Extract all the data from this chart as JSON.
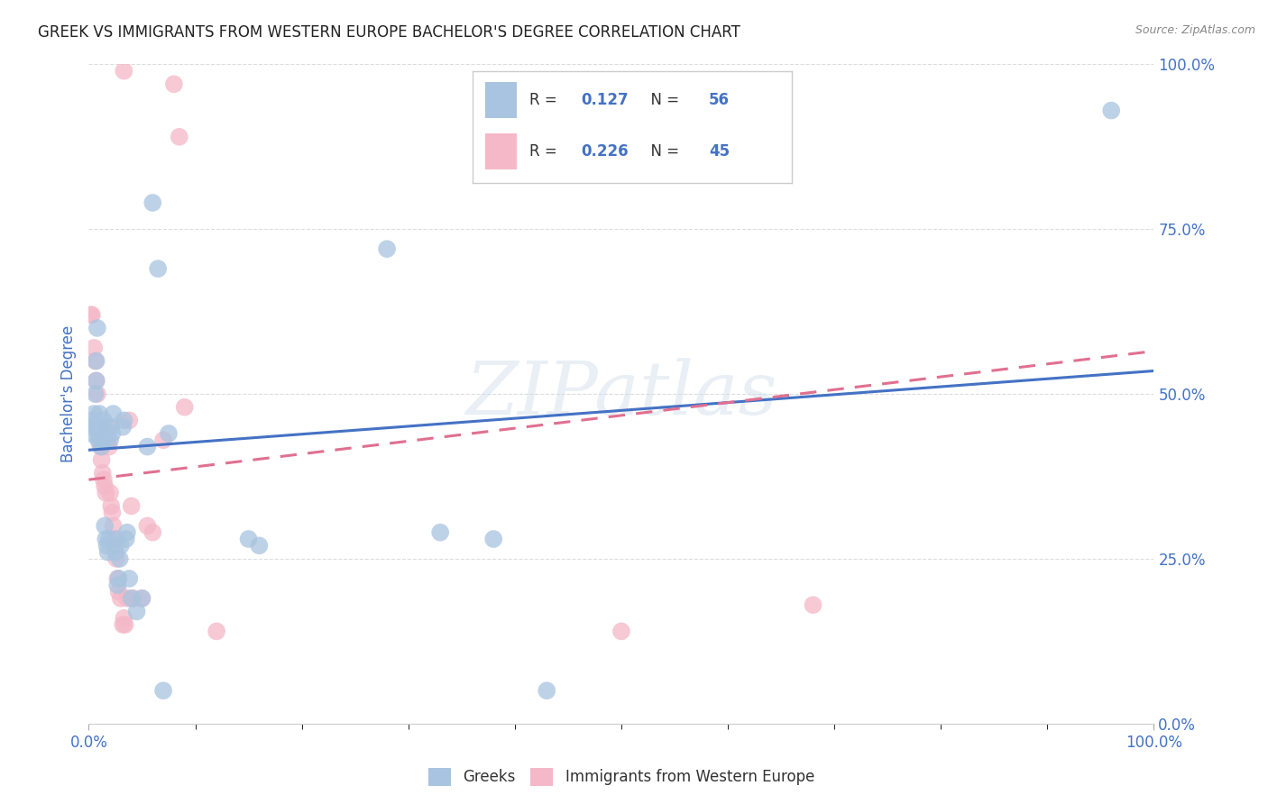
{
  "title": "GREEK VS IMMIGRANTS FROM WESTERN EUROPE BACHELOR'S DEGREE CORRELATION CHART",
  "source": "Source: ZipAtlas.com",
  "ylabel": "Bachelor's Degree",
  "watermark": "ZIPatlas",
  "xlim": [
    0,
    1
  ],
  "ylim": [
    0,
    1
  ],
  "ytick_positions": [
    0.0,
    0.25,
    0.5,
    0.75,
    1.0
  ],
  "ytick_labels": [
    "0.0%",
    "25.0%",
    "50.0%",
    "75.0%",
    "100.0%"
  ],
  "greek_R": "0.127",
  "greek_N": "56",
  "immigrant_R": "0.226",
  "immigrant_N": "45",
  "greek_color": "#a8c4e0",
  "immigrant_color": "#f4b8c8",
  "greek_line_color": "#4472c4",
  "immigrant_line_color": "#e07090",
  "greek_points": [
    [
      0.002,
      0.44
    ],
    [
      0.003,
      0.45
    ],
    [
      0.004,
      0.46
    ],
    [
      0.005,
      0.47
    ],
    [
      0.006,
      0.5
    ],
    [
      0.007,
      0.52
    ],
    [
      0.007,
      0.55
    ],
    [
      0.008,
      0.6
    ],
    [
      0.008,
      0.45
    ],
    [
      0.009,
      0.43
    ],
    [
      0.01,
      0.44
    ],
    [
      0.01,
      0.47
    ],
    [
      0.011,
      0.44
    ],
    [
      0.011,
      0.43
    ],
    [
      0.012,
      0.42
    ],
    [
      0.012,
      0.44
    ],
    [
      0.013,
      0.43
    ],
    [
      0.013,
      0.45
    ],
    [
      0.014,
      0.44
    ],
    [
      0.014,
      0.46
    ],
    [
      0.015,
      0.43
    ],
    [
      0.015,
      0.3
    ],
    [
      0.016,
      0.28
    ],
    [
      0.017,
      0.27
    ],
    [
      0.018,
      0.26
    ],
    [
      0.019,
      0.28
    ],
    [
      0.02,
      0.43
    ],
    [
      0.021,
      0.45
    ],
    [
      0.022,
      0.44
    ],
    [
      0.023,
      0.47
    ],
    [
      0.025,
      0.26
    ],
    [
      0.026,
      0.28
    ],
    [
      0.027,
      0.21
    ],
    [
      0.028,
      0.22
    ],
    [
      0.029,
      0.25
    ],
    [
      0.03,
      0.27
    ],
    [
      0.032,
      0.45
    ],
    [
      0.033,
      0.46
    ],
    [
      0.035,
      0.28
    ],
    [
      0.036,
      0.29
    ],
    [
      0.038,
      0.22
    ],
    [
      0.04,
      0.19
    ],
    [
      0.045,
      0.17
    ],
    [
      0.05,
      0.19
    ],
    [
      0.055,
      0.42
    ],
    [
      0.06,
      0.79
    ],
    [
      0.065,
      0.69
    ],
    [
      0.07,
      0.05
    ],
    [
      0.075,
      0.44
    ],
    [
      0.15,
      0.28
    ],
    [
      0.16,
      0.27
    ],
    [
      0.28,
      0.72
    ],
    [
      0.33,
      0.29
    ],
    [
      0.38,
      0.28
    ],
    [
      0.43,
      0.05
    ],
    [
      0.96,
      0.93
    ]
  ],
  "immigrant_points": [
    [
      0.002,
      0.62
    ],
    [
      0.003,
      0.62
    ],
    [
      0.005,
      0.57
    ],
    [
      0.006,
      0.55
    ],
    [
      0.007,
      0.52
    ],
    [
      0.008,
      0.5
    ],
    [
      0.009,
      0.45
    ],
    [
      0.01,
      0.43
    ],
    [
      0.011,
      0.42
    ],
    [
      0.012,
      0.4
    ],
    [
      0.013,
      0.38
    ],
    [
      0.014,
      0.37
    ],
    [
      0.015,
      0.36
    ],
    [
      0.016,
      0.35
    ],
    [
      0.017,
      0.45
    ],
    [
      0.018,
      0.43
    ],
    [
      0.019,
      0.42
    ],
    [
      0.02,
      0.35
    ],
    [
      0.021,
      0.33
    ],
    [
      0.022,
      0.32
    ],
    [
      0.023,
      0.3
    ],
    [
      0.024,
      0.28
    ],
    [
      0.025,
      0.27
    ],
    [
      0.026,
      0.25
    ],
    [
      0.027,
      0.22
    ],
    [
      0.028,
      0.2
    ],
    [
      0.03,
      0.19
    ],
    [
      0.032,
      0.15
    ],
    [
      0.033,
      0.16
    ],
    [
      0.034,
      0.15
    ],
    [
      0.036,
      0.19
    ],
    [
      0.038,
      0.46
    ],
    [
      0.04,
      0.33
    ],
    [
      0.042,
      0.19
    ],
    [
      0.05,
      0.19
    ],
    [
      0.055,
      0.3
    ],
    [
      0.06,
      0.29
    ],
    [
      0.07,
      0.43
    ],
    [
      0.08,
      0.97
    ],
    [
      0.085,
      0.89
    ],
    [
      0.09,
      0.48
    ],
    [
      0.12,
      0.14
    ],
    [
      0.5,
      0.14
    ],
    [
      0.68,
      0.18
    ],
    [
      0.033,
      0.99
    ]
  ],
  "greek_line": {
    "x0": 0.0,
    "y0": 0.415,
    "x1": 1.0,
    "y1": 0.535
  },
  "immigrant_line": {
    "x0": 0.0,
    "y0": 0.37,
    "x1": 1.0,
    "y1": 0.565
  },
  "background_color": "#ffffff",
  "grid_color": "#dddddd",
  "title_color": "#222222",
  "axis_label_color": "#4472c4",
  "tick_color": "#4472c4",
  "source_color": "#888888"
}
